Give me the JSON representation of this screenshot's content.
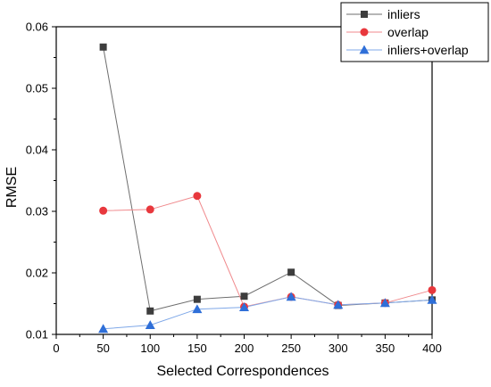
{
  "chart_data": {
    "type": "line",
    "title": "",
    "xlabel": "Selected Correspondences",
    "ylabel": "RMSE",
    "xlim": [
      0,
      400
    ],
    "ylim": [
      0.01,
      0.06
    ],
    "x_ticks": [
      "0",
      "50",
      "100",
      "150",
      "200",
      "250",
      "300",
      "350",
      "400"
    ],
    "y_ticks": [
      "0.01",
      "0.02",
      "0.03",
      "0.04",
      "0.05",
      "0.06"
    ],
    "x": [
      50,
      100,
      150,
      200,
      250,
      300,
      350,
      400
    ],
    "grid": false,
    "legend_position": "top-right",
    "series": [
      {
        "name": "inliers",
        "values": [
          0.0567,
          0.0138,
          0.0157,
          0.0162,
          0.0201,
          0.0147,
          0.0151,
          0.0156
        ],
        "marker": "square",
        "marker_color": "#3d3d3d",
        "line_color": "#6e6e6e"
      },
      {
        "name": "overlap",
        "values": [
          0.0301,
          0.0303,
          0.0325,
          0.0145,
          0.0161,
          0.0148,
          0.0151,
          0.0172
        ],
        "marker": "circle",
        "marker_color": "#e8383d",
        "line_color": "#f08a8d"
      },
      {
        "name": "inliers+overlap",
        "values": [
          0.0109,
          0.0115,
          0.0141,
          0.0144,
          0.0161,
          0.0148,
          0.0151,
          0.0156
        ],
        "marker": "triangle",
        "marker_color": "#2f6fd8",
        "line_color": "#7fa8e8"
      }
    ]
  }
}
